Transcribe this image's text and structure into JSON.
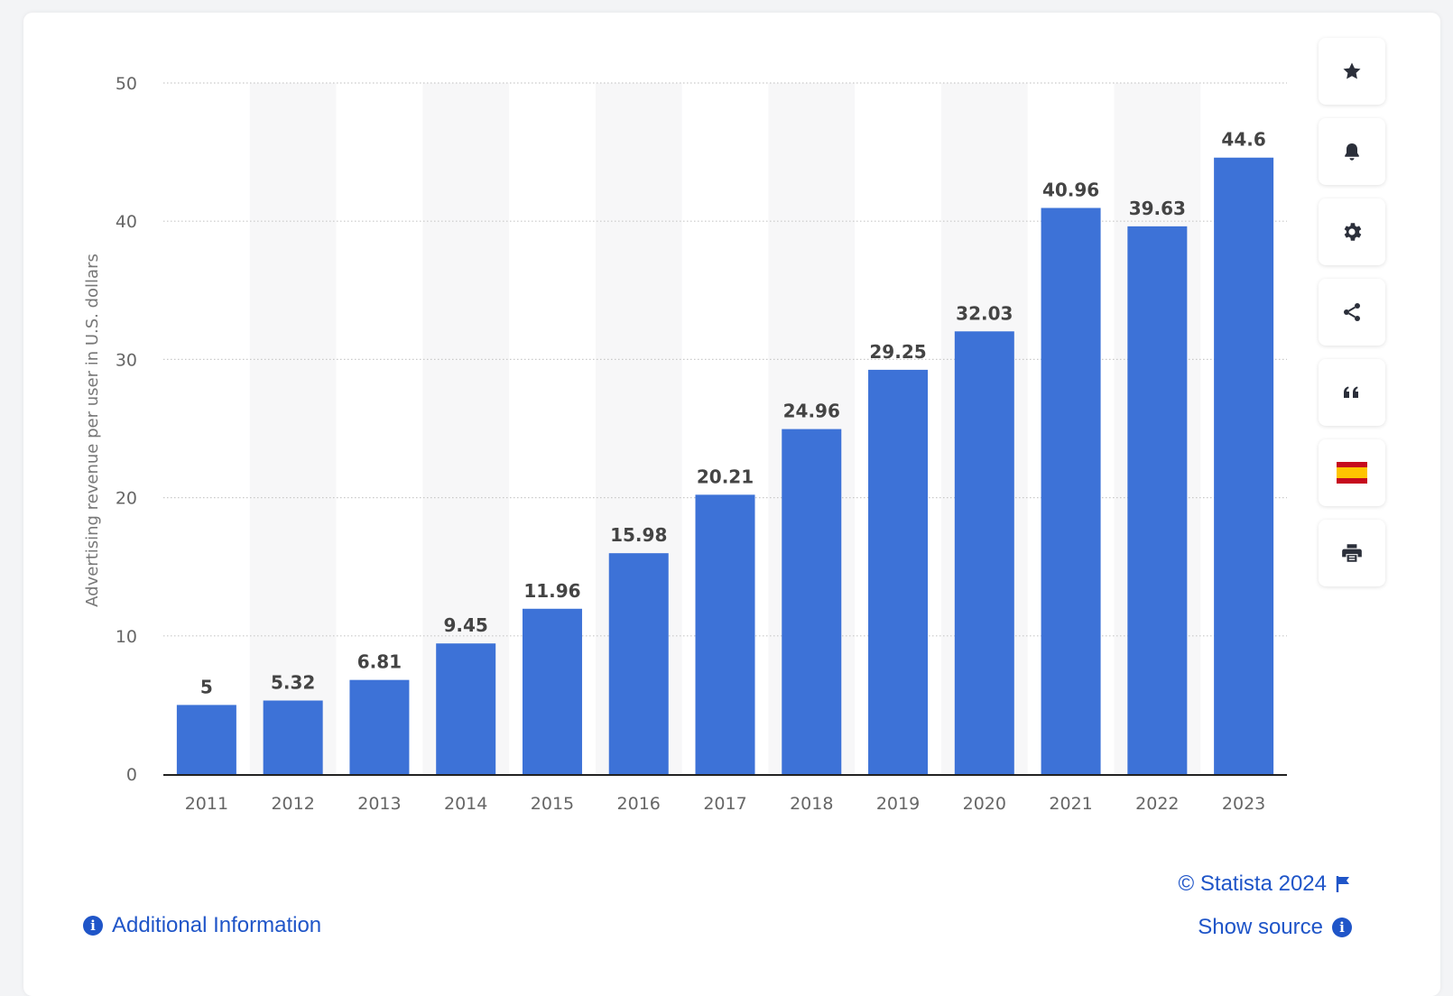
{
  "chart_data": {
    "type": "bar",
    "categories": [
      "2011",
      "2012",
      "2013",
      "2014",
      "2015",
      "2016",
      "2017",
      "2018",
      "2019",
      "2020",
      "2021",
      "2022",
      "2023"
    ],
    "values": [
      5,
      5.32,
      6.81,
      9.45,
      11.96,
      15.98,
      20.21,
      24.96,
      29.25,
      32.03,
      40.96,
      39.63,
      44.6
    ],
    "data_labels": [
      "5",
      "5.32",
      "6.81",
      "9.45",
      "11.96",
      "15.98",
      "20.21",
      "24.96",
      "29.25",
      "32.03",
      "40.96",
      "39.63",
      "44.6"
    ],
    "ylabel": "Advertising revenue per user in U.S. dollars",
    "xlabel": "",
    "title": "",
    "ylim": [
      0,
      50
    ],
    "yticks": [
      "0",
      "10",
      "20",
      "30",
      "40",
      "50"
    ],
    "grid": true,
    "bar_color": "#3d72d7"
  },
  "toolbar": {
    "buttons": [
      {
        "icon": "star-icon"
      },
      {
        "icon": "bell-icon"
      },
      {
        "icon": "gear-icon"
      },
      {
        "icon": "share-icon"
      },
      {
        "icon": "quote-icon"
      },
      {
        "icon": "spain-flag-icon"
      },
      {
        "icon": "print-icon"
      }
    ]
  },
  "footer": {
    "additional_info": "Additional Information",
    "credit": "© Statista 2024",
    "show_source": "Show source"
  },
  "colors": {
    "accent": "#1f55c8",
    "bar": "#3d72d7"
  }
}
